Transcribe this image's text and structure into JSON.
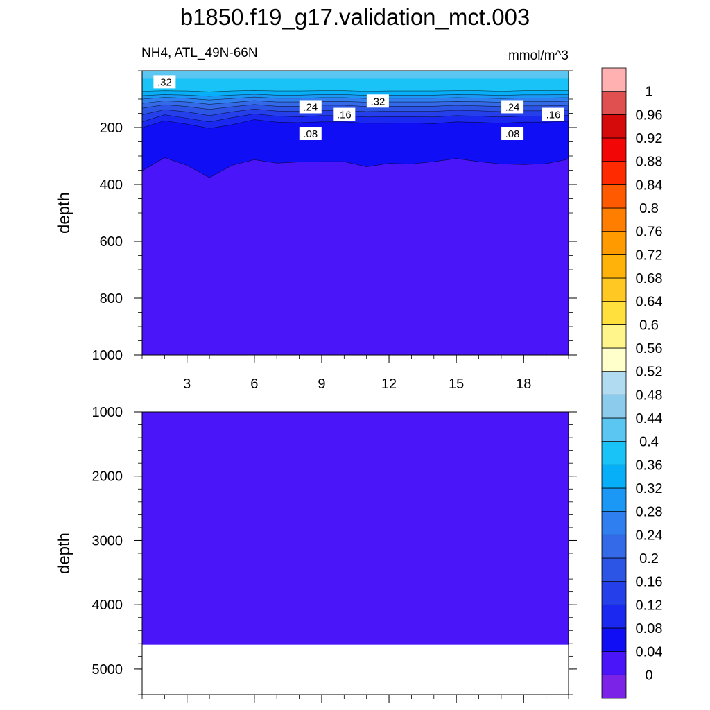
{
  "chart_data": {
    "type": "contour",
    "title": "b1850.f19_g17.validation_mct.003",
    "subtitle_left": "NH4, ATL_49N-66N",
    "subtitle_right": "mmol/m^3",
    "x_range": [
      1,
      20
    ],
    "x_ticks": [
      {
        "value": 3,
        "label": "3"
      },
      {
        "value": 6,
        "label": "6"
      },
      {
        "value": 9,
        "label": "9"
      },
      {
        "value": 12,
        "label": "12"
      },
      {
        "value": 15,
        "label": "15"
      },
      {
        "value": 18,
        "label": "18"
      }
    ],
    "panels": [
      {
        "id": "upper",
        "ylabel": "depth",
        "ylim": [
          0,
          1000
        ],
        "y_ticks": [
          {
            "value": 200,
            "label": "200"
          },
          {
            "value": 400,
            "label": "400"
          },
          {
            "value": 600,
            "label": "600"
          },
          {
            "value": 800,
            "label": "800"
          },
          {
            "value": 1000,
            "label": "1000"
          }
        ],
        "x_tick_labels_shown": true,
        "fill_color": "#4a16f9",
        "bands": [
          {
            "color": "#0f0ef5",
            "depths": [
              352,
              306,
              333,
              376,
              333,
              313,
              325,
              321,
              320,
              320,
              338,
              326,
              328,
              320,
              309,
              320,
              328,
              330,
              327,
              311
            ]
          },
          {
            "color": "#1a28f0",
            "depths": [
              201,
              176,
              188,
              203,
              190,
              172,
              181,
              183,
              180,
              180,
              185,
              185,
              184,
              186,
              180,
              182,
              185,
              181,
              181,
              178
            ]
          },
          {
            "color": "#2540ea",
            "depths": [
              180,
              155,
              167,
              180,
              165,
              152,
              160,
              162,
              158,
              158,
              163,
              162,
              162,
              163,
              158,
              160,
              163,
              160,
              160,
              157
            ]
          },
          {
            "color": "#2c55e6",
            "depths": [
              155,
              137,
              145,
              158,
              145,
              135,
              142,
              143,
              140,
              140,
              144,
              143,
              143,
              143,
              139,
              141,
              144,
              141,
              141,
              139
            ]
          },
          {
            "color": "#3469e8",
            "depths": [
              132,
              120,
              126,
              136,
              127,
              119,
              125,
              125,
              122,
              122,
              126,
              125,
              125,
              125,
              122,
              124,
              126,
              124,
              124,
              122
            ]
          },
          {
            "color": "#2f7ff0",
            "depths": [
              115,
              106,
              110,
              118,
              112,
              105,
              110,
              110,
              108,
              108,
              111,
              110,
              110,
              110,
              108,
              109,
              111,
              109,
              109,
              107
            ]
          },
          {
            "color": "#1b98f5",
            "depths": [
              100,
              94,
              97,
              103,
              98,
              93,
              97,
              97,
              95,
              95,
              98,
              97,
              97,
              97,
              95,
              96,
              98,
              96,
              96,
              95
            ]
          },
          {
            "color": "#07aff9",
            "depths": [
              88,
              84,
              86,
              90,
              86,
              83,
              86,
              86,
              84,
              84,
              87,
              86,
              86,
              86,
              84,
              85,
              87,
              85,
              85,
              84
            ]
          },
          {
            "color": "#1ac3f7",
            "depths": [
              72,
              70,
              71,
              74,
              71,
              69,
              71,
              71,
              70,
              70,
              72,
              71,
              71,
              71,
              70,
              70,
              72,
              70,
              70,
              70
            ]
          }
        ],
        "contour_labels": [
          {
            "text": ".32",
            "x": 2.0,
            "depth": 40
          },
          {
            "text": ".24",
            "x": 8.5,
            "depth": 128
          },
          {
            "text": ".32",
            "x": 11.5,
            "depth": 108
          },
          {
            "text": ".16",
            "x": 10.0,
            "depth": 155
          },
          {
            "text": ".24",
            "x": 17.5,
            "depth": 128
          },
          {
            "text": ".16",
            "x": 20.0,
            "depth": 155
          },
          {
            "text": ".08",
            "x": 8.5,
            "depth": 222
          },
          {
            "text": ".08",
            "x": 17.5,
            "depth": 222
          }
        ]
      },
      {
        "id": "lower",
        "ylabel": "depth",
        "ylim": [
          1000,
          5400
        ],
        "y_ticks": [
          {
            "value": 1000,
            "label": "1000"
          },
          {
            "value": 2000,
            "label": "2000"
          },
          {
            "value": 3000,
            "label": "3000"
          },
          {
            "value": 4000,
            "label": "4000"
          },
          {
            "value": 5000,
            "label": "5000"
          }
        ],
        "x_tick_labels_shown": false,
        "fill_color": "#4a16f9",
        "fill_to_depth": 4620
      }
    ],
    "colorbar": {
      "levels": [
        "0",
        "0.04",
        "0.08",
        "0.12",
        "0.16",
        "0.2",
        "0.24",
        "0.28",
        "0.32",
        "0.36",
        "0.4",
        "0.44",
        "0.48",
        "0.52",
        "0.56",
        "0.6",
        "0.64",
        "0.68",
        "0.72",
        "0.76",
        "0.8",
        "0.84",
        "0.88",
        "0.92",
        "0.96",
        "1"
      ],
      "colors": [
        "#7b24e8",
        "#4a16f9",
        "#0f0ef5",
        "#1a28f0",
        "#2540ea",
        "#2c55e6",
        "#3469e8",
        "#2f7ff0",
        "#1b98f5",
        "#07aff9",
        "#1ac3f7",
        "#5bc6f2",
        "#8ccbeb",
        "#b0dbf1",
        "#ffffcc",
        "#fff58a",
        "#ffe03d",
        "#ffc823",
        "#ffb20a",
        "#ff9a00",
        "#ff7e00",
        "#ff5a00",
        "#ff2a00",
        "#f20606",
        "#d50a0a",
        "#e15050",
        "#ffb0b0"
      ]
    }
  }
}
